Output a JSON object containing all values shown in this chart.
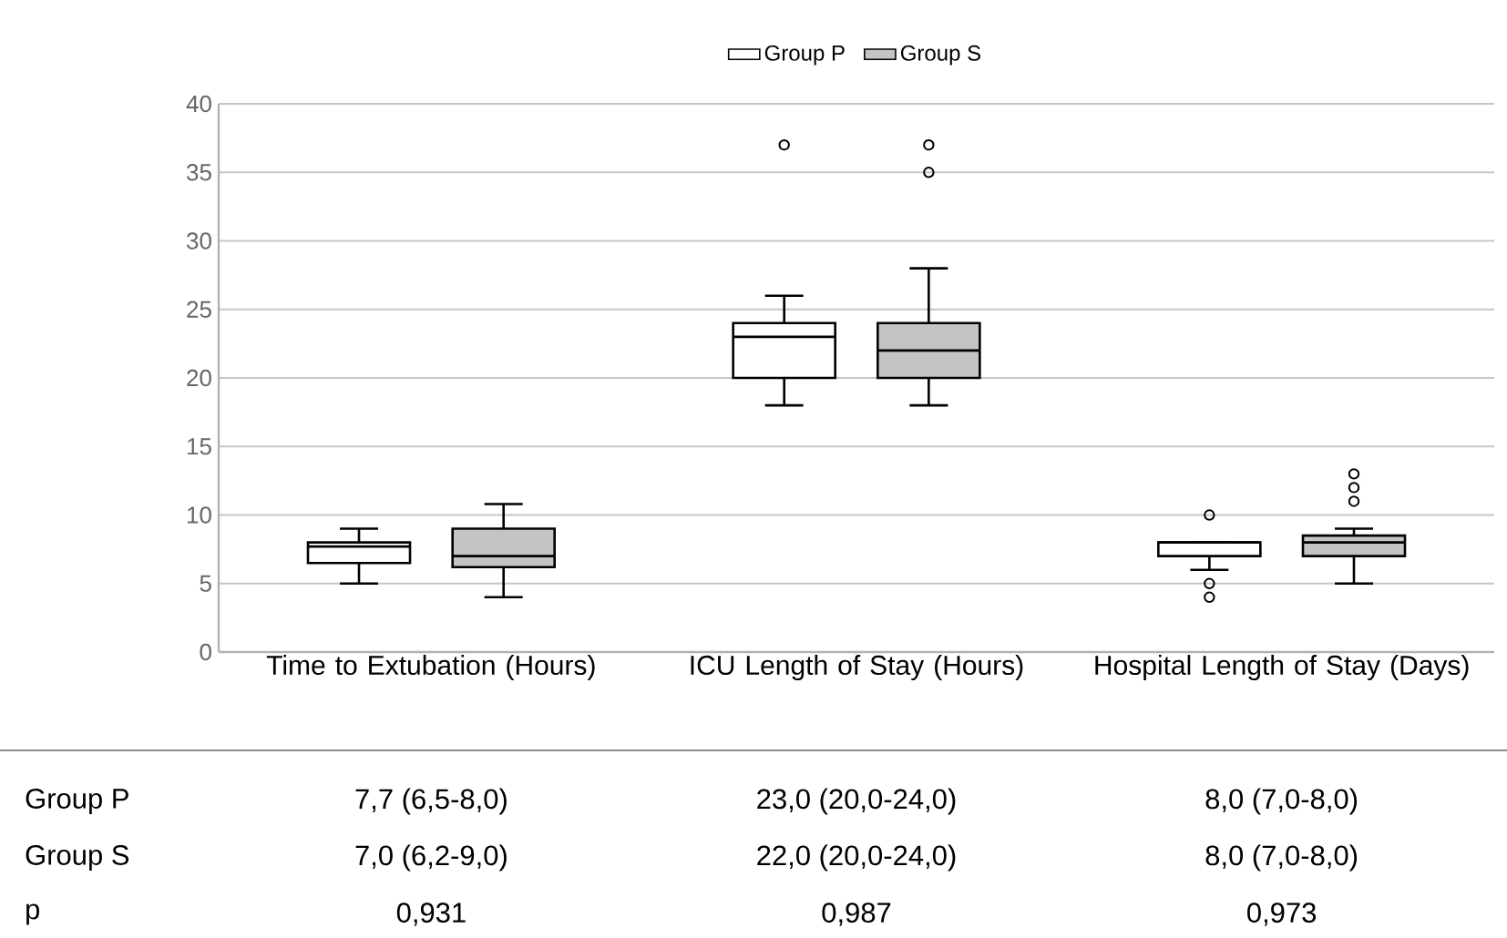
{
  "chart_data": {
    "type": "box",
    "categories": [
      "Time to Extubation (Hours)",
      "ICU Length of Stay (Hours)",
      "Hospital Length of Stay (Days)"
    ],
    "series": [
      {
        "name": "Group P",
        "color": "#ffffff",
        "boxes": [
          {
            "low": 5,
            "q1": 6.5,
            "median": 7.7,
            "q3": 8,
            "high": 9
          },
          {
            "low": 18,
            "q1": 20,
            "median": 23,
            "q3": 24,
            "high": 26,
            "outliers": [
              37
            ]
          },
          {
            "low": 6,
            "q1": 7,
            "median": 8,
            "q3": 8,
            "high": 8,
            "outliers": [
              10,
              5,
              4
            ]
          }
        ]
      },
      {
        "name": "Group S",
        "color": "#c4c4c4",
        "boxes": [
          {
            "low": 4,
            "q1": 6.2,
            "median": 7,
            "q3": 9,
            "high": 10.8
          },
          {
            "low": 18,
            "q1": 20,
            "median": 22,
            "q3": 24,
            "high": 28,
            "outliers": [
              35,
              37
            ]
          },
          {
            "low": 5,
            "q1": 7,
            "median": 8,
            "q3": 8.5,
            "high": 9,
            "outliers": [
              11,
              12,
              13
            ]
          }
        ]
      }
    ],
    "ylim": [
      0,
      40
    ],
    "yticks": [
      0,
      5,
      10,
      15,
      20,
      25,
      30,
      35,
      40
    ],
    "grid": "y",
    "legend": "top",
    "annotations": [
      "Group P",
      "7,7 (6,5-8,0)",
      "23,0 (20,0-24,0)",
      "8,0 (7,0-8,0)",
      "Group S",
      "7,0 (6,2-9,0)",
      "22,0 (20,0-24,0)",
      "8,0 (7,0-8,0)",
      "p",
      "0,931",
      "0,987",
      "0,973"
    ]
  }
}
